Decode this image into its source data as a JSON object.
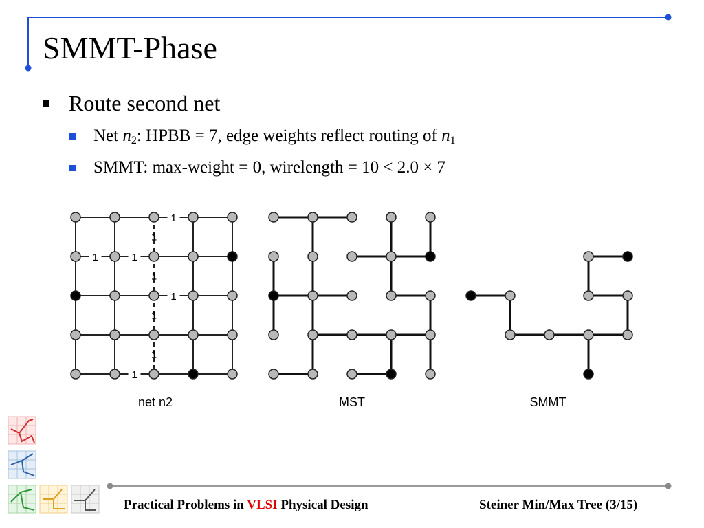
{
  "slide": {
    "title": "SMMT-Phase",
    "bullet_main": "Route second net",
    "sub1": {
      "pre": "Net ",
      "n_italic": "n",
      "n_sub": "2",
      "mid": ": HPBB = 7, edge weights reflect routing of ",
      "n1_italic": "n",
      "n1_sub": "1"
    },
    "sub2": "SMMT: max-weight = 0, wirelength = 10 < 2.0 × 7"
  },
  "figure": {
    "captions": [
      "net n2",
      "MST",
      "SMMT"
    ],
    "edge_weight_label": "1"
  },
  "footer": {
    "left_pre": "Practical Problems in ",
    "left_highlight": "VLSI",
    "left_post": " Physical Design",
    "right": "Steiner Min/Max Tree (3/15)"
  },
  "colors": {
    "accent_blue": "#1f4fd8",
    "highlight_red": "#e00000",
    "node_fill": "#b8b8b8",
    "pin_fill": "#000000"
  }
}
